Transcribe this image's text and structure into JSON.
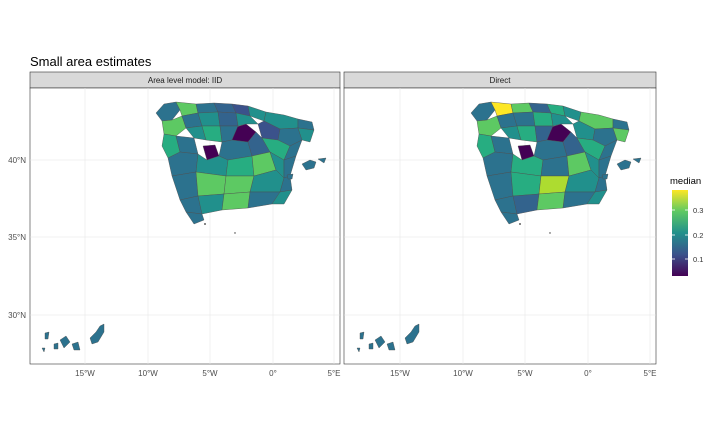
{
  "title": "Small area estimates",
  "panels": [
    {
      "label": "Area level model: IID"
    },
    {
      "label": "Direct"
    }
  ],
  "x_ticks": [
    "15°W",
    "10°W",
    "5°W",
    "0°",
    "5°E"
  ],
  "y_ticks": [
    "40°N",
    "35°N",
    "30°N"
  ],
  "legend": {
    "title": "median",
    "ticks": [
      "0.3",
      "0.2",
      "0.1"
    ]
  },
  "colors": {
    "low": "#440154",
    "mid": "#21908c",
    "high": "#fde725",
    "strip": "#d9d9d9",
    "grid": "#ebebeb"
  }
}
